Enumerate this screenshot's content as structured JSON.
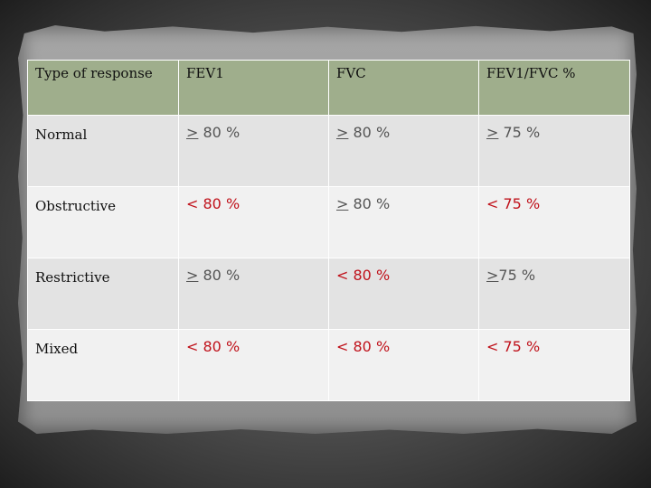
{
  "table": {
    "headers": [
      "Type of response",
      "FEV1",
      "FVC",
      "FEV1/FVC   %"
    ],
    "rows": [
      {
        "label": "Normal",
        "cells": [
          {
            "op": ">",
            "value": " 80 %",
            "status": "normal"
          },
          {
            "op": ">",
            "value": " 80 %",
            "status": "normal"
          },
          {
            "op": ">",
            "value": " 75 %",
            "status": "normal"
          }
        ]
      },
      {
        "label": "Obstructive",
        "cells": [
          {
            "op": "<",
            "value": " 80 %",
            "status": "abnormal"
          },
          {
            "op": ">",
            "value": " 80 %",
            "status": "normal"
          },
          {
            "op": "<",
            "value": " 75 %",
            "status": "abnormal"
          }
        ]
      },
      {
        "label": "Restrictive",
        "cells": [
          {
            "op": ">",
            "value": " 80 %",
            "status": "normal"
          },
          {
            "op": "<",
            "value": " 80 %",
            "status": "abnormal"
          },
          {
            "op": ">",
            "value": "75 %",
            "status": "normal"
          }
        ]
      },
      {
        "label": "Mixed",
        "cells": [
          {
            "op": "<",
            "value": " 80 %",
            "status": "abnormal"
          },
          {
            "op": "<",
            "value": " 80 %",
            "status": "abnormal"
          },
          {
            "op": "<",
            "value": " 75 %",
            "status": "abnormal"
          }
        ]
      }
    ]
  },
  "colors": {
    "header_bg": "#9fae8c",
    "row_odd_bg": "#e3e3e3",
    "row_even_bg": "#f1f1f1",
    "normal_text": "#555555",
    "abnormal_text": "#c0121b"
  }
}
